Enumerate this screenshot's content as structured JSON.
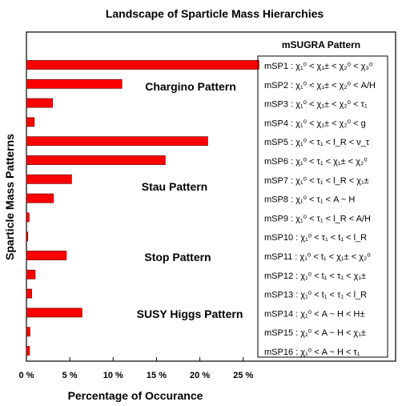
{
  "chart_data": {
    "type": "bar",
    "orientation": "horizontal",
    "title": "Landscape of Sparticle Mass Hierarchies",
    "xlabel": "Percentage of Occurance",
    "ylabel": "Sparticle Mass Patterns",
    "xlim": [
      0,
      30
    ],
    "x_ticks": [
      "0 %",
      "5 %",
      "10 %",
      "15 %",
      "20 %",
      "25 %"
    ],
    "x_tick_values": [
      0,
      5,
      10,
      15,
      20,
      25
    ],
    "bar_color": "#ff0000",
    "categories": [
      "mSP1",
      "mSP2",
      "mSP3",
      "mSP4",
      "mSP5",
      "mSP6",
      "mSP7",
      "mSP8",
      "mSP9",
      "mSP10",
      "mSP11",
      "mSP12",
      "mSP13",
      "mSP14",
      "mSP15",
      "mSP16"
    ],
    "values": [
      26.8,
      11.0,
      3.0,
      0.9,
      20.9,
      16.0,
      5.2,
      3.1,
      0.3,
      0.15,
      4.6,
      1.0,
      0.6,
      6.4,
      0.4,
      0.35
    ],
    "annotations": [
      {
        "text": "Chargino Pattern",
        "at_category": "mSP2"
      },
      {
        "text": "Stau  Pattern",
        "at_category": "mSP7"
      },
      {
        "text": "Stop Pattern",
        "at_category": "mSP10"
      },
      {
        "text": "SUSY Higgs Pattern",
        "at_category": "mSP14"
      }
    ],
    "legend": {
      "title": "mSUGRA Pattern",
      "placement": "right",
      "entries": [
        "mSP1 : χ₁⁰ < χ₁± < χ₂⁰ < χ₃⁰",
        "mSP2 : χ₁⁰ < χ₁± < χ₂⁰ < A/H",
        "mSP3 : χ₁⁰ < χ₁± < χ₂⁰ < τ₁",
        "mSP4 : χ₁⁰ < χ₁± < χ₂⁰ < g",
        "mSP5 : χ₁⁰ < τ₁ < l_R < ν_τ",
        "mSP6 : χ₁⁰ < τ₁ < χ₁± < χ₂⁰",
        "mSP7 : χ₁⁰ < τ₁ < l_R < χ₁±",
        "mSP8 : χ₁⁰ < τ₁ < A ~ H",
        "mSP9 : χ₁⁰ < τ₁ < l_R < A/H",
        "mSP10 : χ₁⁰ < τ₁ < t₁ < l_R",
        "mSP11 : χ₁⁰ < t₁ < χ₁± < χ₂⁰",
        "mSP12 : χ₁⁰ < t₁ < τ₁ < χ₁±",
        "mSP13 : χ₁⁰ < t₁ < τ₁ < l_R",
        "mSP14 : χ₁⁰ < A ~ H < H±",
        "mSP15 : χ₁⁰ < A ~ H < χ₁±",
        "mSP16 : χ₁⁰ < A ~ H < τ₁"
      ]
    }
  }
}
